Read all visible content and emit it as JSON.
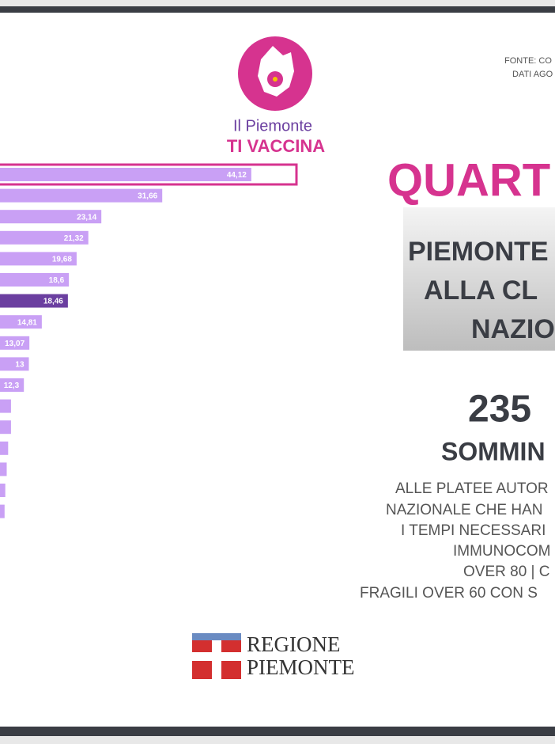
{
  "chart_data": {
    "type": "bar",
    "orientation": "horizontal",
    "values": [
      44.12,
      31.66,
      23.14,
      21.32,
      19.68,
      18.6,
      18.46,
      14.81,
      13.07,
      13,
      12.3,
      10.5,
      10.5,
      10.1,
      9.9,
      9.7,
      9.6
    ],
    "value_labels": [
      "44,12",
      "31,66",
      "23,14",
      "21,32",
      "19,68",
      "18,6",
      "18,46",
      "14,81",
      "13,07",
      "13",
      "12,3",
      null,
      null,
      null,
      null,
      null,
      null
    ],
    "colors": [
      "#c9a0f5",
      "#c9a0f5",
      "#c9a0f5",
      "#c9a0f5",
      "#c9a0f5",
      "#c9a0f5",
      "#6b3fa0",
      "#c9a0f5",
      "#c9a0f5",
      "#c9a0f5",
      "#c9a0f5",
      "#c9a0f5",
      "#c9a0f5",
      "#c9a0f5",
      "#c9a0f5",
      "#c9a0f5",
      "#c9a0f5"
    ]
  },
  "logo": {
    "line1": "Il Piemonte",
    "line2": "TI VACCINA"
  },
  "source": [
    "FONTE: CO",
    "DATI AGO"
  ],
  "title": "QUART",
  "box": [
    "PIEMONTE",
    "ALLA CL",
    "NAZIO"
  ],
  "count": "235 ",
  "count_label": "SOMMIN",
  "description": [
    "ALLE PLATEE AUTOR",
    "NAZIONALE CHE HAN",
    "I TEMPI NECESSARI",
    "IMMUNOCOM",
    "OVER 80 | C",
    "FRAGILI OVER 60 CON S"
  ],
  "footer": [
    "REGIONE",
    "PIEMONTE"
  ]
}
